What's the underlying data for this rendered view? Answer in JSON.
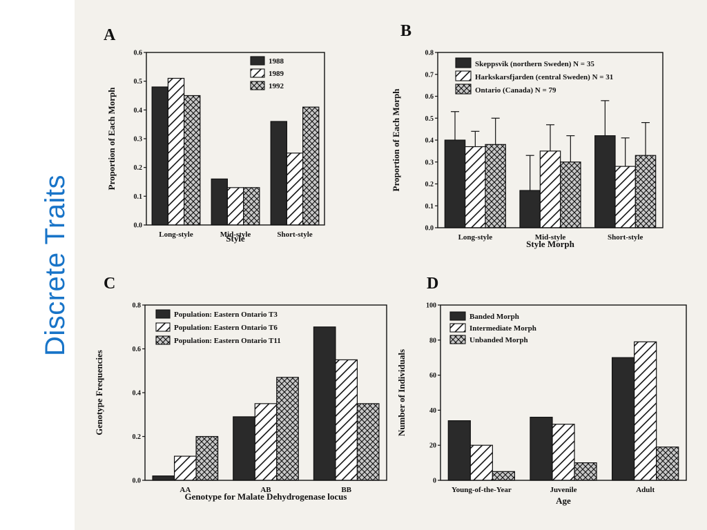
{
  "slide": {
    "title": "Discrete Traits"
  },
  "chart_data": [
    {
      "panel": "A",
      "type": "bar",
      "categories": [
        "Long-style",
        "Mid-style",
        "Short-style"
      ],
      "series": [
        {
          "name": "1988",
          "values": [
            0.48,
            0.16,
            0.36
          ]
        },
        {
          "name": "1989",
          "values": [
            0.51,
            0.13,
            0.25
          ]
        },
        {
          "name": "1992",
          "values": [
            0.45,
            0.13,
            0.41
          ]
        }
      ],
      "xlabel": "Style",
      "ylabel": "Proportion of Each Morph",
      "ylim": [
        0,
        0.6
      ],
      "yticks": [
        "0.0",
        "0.1",
        "0.2",
        "0.3",
        "0.4",
        "0.5",
        "0.6"
      ],
      "legend": "top-center",
      "grid": false
    },
    {
      "panel": "B",
      "type": "bar",
      "categories": [
        "Long-style",
        "Mid-style",
        "Short-style"
      ],
      "series": [
        {
          "name": "Skeppsvik (northern Sweden) N = 35",
          "values": [
            0.4,
            0.17,
            0.42
          ],
          "errors": [
            0.13,
            0.16,
            0.16
          ]
        },
        {
          "name": "Harkskarsfjarden (central Sweden) N = 31",
          "values": [
            0.37,
            0.35,
            0.28
          ],
          "errors": [
            0.07,
            0.12,
            0.13
          ]
        },
        {
          "name": "Ontario (Canada) N = 79",
          "values": [
            0.38,
            0.3,
            0.33
          ],
          "errors": [
            0.12,
            0.12,
            0.15
          ]
        }
      ],
      "xlabel": "Style Morph",
      "ylabel": "Proportion of Each Morph",
      "ylim": [
        0,
        0.8
      ],
      "yticks": [
        "0.0",
        "0.1",
        "0.2",
        "0.3",
        "0.4",
        "0.5",
        "0.6",
        "0.7",
        "0.8"
      ],
      "legend": "top-left",
      "grid": false
    },
    {
      "panel": "C",
      "type": "bar",
      "categories": [
        "AA",
        "AB",
        "BB"
      ],
      "series": [
        {
          "name": "Population: Eastern Ontario T3",
          "values": [
            0.02,
            0.29,
            0.7
          ]
        },
        {
          "name": "Population: Eastern Ontario T6",
          "values": [
            0.11,
            0.35,
            0.55
          ]
        },
        {
          "name": "Population: Eastern Ontario T11",
          "values": [
            0.2,
            0.47,
            0.35
          ]
        }
      ],
      "xlabel": "Genotype for Malate Dehydrogenase locus",
      "ylabel": "Genotype Frequencies",
      "ylim": [
        0,
        0.8
      ],
      "yticks": [
        "0.0",
        "0.2",
        "0.4",
        "0.6",
        "0.8"
      ],
      "legend": "top-left",
      "grid": false
    },
    {
      "panel": "D",
      "type": "bar",
      "categories": [
        "Young-of-the-Year",
        "Juvenile",
        "Adult"
      ],
      "series": [
        {
          "name": "Banded Morph",
          "values": [
            34,
            36,
            70
          ]
        },
        {
          "name": "Intermediate Morph",
          "values": [
            20,
            32,
            79
          ]
        },
        {
          "name": "Unbanded Morph",
          "values": [
            5,
            10,
            19
          ]
        }
      ],
      "xlabel": "Age",
      "ylabel": "Number of Individuals",
      "ylim": [
        0,
        100
      ],
      "yticks": [
        "0",
        "20",
        "40",
        "60",
        "80",
        "100"
      ],
      "legend": "top-left",
      "grid": false
    }
  ]
}
